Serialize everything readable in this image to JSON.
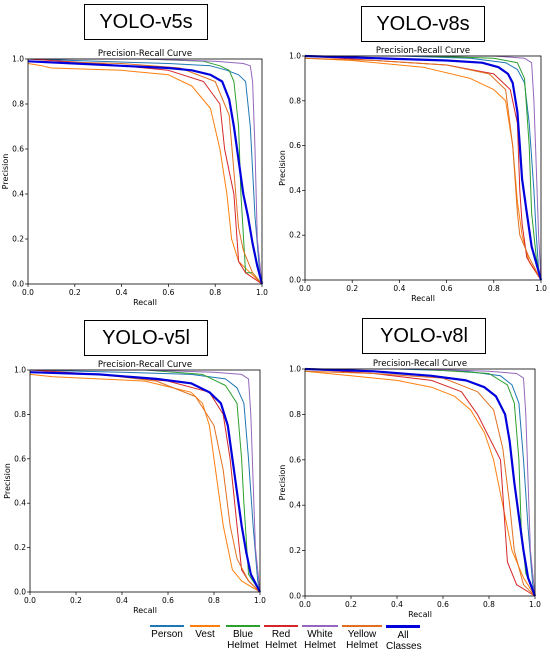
{
  "legend": [
    {
      "label": "Person",
      "color": "#1f77b4"
    },
    {
      "label": "Vest",
      "color": "#ff7f0e"
    },
    {
      "label": "Blue Helmet",
      "color": "#2ca02c"
    },
    {
      "label": "Red Helmet",
      "color": "#d62728"
    },
    {
      "label": "White Helmet",
      "color": "#9467bd"
    },
    {
      "label": "Yellow Helmet",
      "color": "#e07020"
    },
    {
      "label": "All Classes",
      "color": "#0000dd"
    }
  ],
  "chart_data": [
    {
      "model": "YOLO-v5s",
      "type": "line",
      "title": "Precision-Recall Curve",
      "xlabel": "Recall",
      "ylabel": "Precision",
      "xlim": [
        0,
        1
      ],
      "ylim": [
        0,
        1
      ],
      "xticks": [
        "0.0",
        "0.2",
        "0.4",
        "0.6",
        "0.8",
        "1.0"
      ],
      "yticks": [
        "0.0",
        "0.2",
        "0.4",
        "0.6",
        "0.8",
        "1.0"
      ],
      "series": [
        {
          "name": "Person",
          "color": "#1f77b4",
          "x": [
            0,
            0.3,
            0.6,
            0.78,
            0.85,
            0.9,
            0.93,
            0.95,
            0.97,
            0.99,
            1.0
          ],
          "y": [
            1,
            0.99,
            0.98,
            0.97,
            0.95,
            0.93,
            0.9,
            0.7,
            0.3,
            0.05,
            0
          ]
        },
        {
          "name": "Vest",
          "color": "#ff7f0e",
          "x": [
            0,
            0.06,
            0.1,
            0.4,
            0.6,
            0.7,
            0.78,
            0.82,
            0.85,
            0.87,
            0.9,
            0.95,
            1.0
          ],
          "y": [
            0.98,
            0.97,
            0.96,
            0.95,
            0.93,
            0.88,
            0.78,
            0.6,
            0.4,
            0.2,
            0.1,
            0.05,
            0
          ]
        },
        {
          "name": "Blue Helmet",
          "color": "#2ca02c",
          "x": [
            0,
            0.5,
            0.75,
            0.82,
            0.86,
            0.88,
            0.9,
            0.91,
            0.93,
            0.96,
            1.0
          ],
          "y": [
            1,
            1,
            0.99,
            0.97,
            0.95,
            0.9,
            0.7,
            0.4,
            0.05,
            0.05,
            0
          ]
        },
        {
          "name": "Red Helmet",
          "color": "#d62728",
          "x": [
            0,
            0.3,
            0.6,
            0.75,
            0.82,
            0.84,
            0.86,
            0.88,
            0.9,
            0.93,
            1.0
          ],
          "y": [
            1,
            0.98,
            0.95,
            0.9,
            0.8,
            0.6,
            0.5,
            0.4,
            0.1,
            0.05,
            0
          ]
        },
        {
          "name": "White Helmet",
          "color": "#9467bd",
          "x": [
            0,
            0.5,
            0.8,
            0.92,
            0.95,
            0.96,
            0.97,
            0.98,
            1.0
          ],
          "y": [
            1,
            1,
            0.99,
            0.98,
            0.97,
            0.9,
            0.6,
            0.2,
            0
          ]
        },
        {
          "name": "Yellow Helmet",
          "color": "#e07020",
          "x": [
            0,
            0.4,
            0.65,
            0.8,
            0.86,
            0.88,
            0.9,
            0.92,
            0.96,
            1.0
          ],
          "y": [
            0.99,
            0.98,
            0.96,
            0.9,
            0.75,
            0.5,
            0.25,
            0.15,
            0.05,
            0
          ]
        },
        {
          "name": "All Classes",
          "color": "#0000dd",
          "x": [
            0,
            0.2,
            0.4,
            0.6,
            0.7,
            0.78,
            0.83,
            0.86,
            0.88,
            0.9,
            0.92,
            0.94,
            0.96,
            0.98,
            1.0
          ],
          "y": [
            0.99,
            0.98,
            0.97,
            0.96,
            0.95,
            0.93,
            0.9,
            0.82,
            0.7,
            0.55,
            0.4,
            0.3,
            0.18,
            0.08,
            0
          ]
        }
      ]
    },
    {
      "model": "YOLO-v8s",
      "type": "line",
      "title": "Precision-Recall Curve",
      "xlabel": "Recall",
      "ylabel": "Precision",
      "xlim": [
        0,
        1
      ],
      "ylim": [
        0,
        1
      ],
      "xticks": [
        "0.0",
        "0.2",
        "0.4",
        "0.6",
        "0.8",
        "1.0"
      ],
      "yticks": [
        "0.0",
        "0.2",
        "0.4",
        "0.6",
        "0.8",
        "1.0"
      ],
      "series": [
        {
          "name": "Person",
          "color": "#1f77b4",
          "x": [
            0,
            0.4,
            0.7,
            0.85,
            0.9,
            0.93,
            0.95,
            0.97,
            0.98,
            0.99,
            1.0
          ],
          "y": [
            1,
            1,
            0.99,
            0.97,
            0.94,
            0.88,
            0.7,
            0.4,
            0.2,
            0.05,
            0
          ]
        },
        {
          "name": "Vest",
          "color": "#ff7f0e",
          "x": [
            0,
            0.2,
            0.5,
            0.7,
            0.8,
            0.85,
            0.88,
            0.9,
            0.92,
            0.95,
            1.0
          ],
          "y": [
            0.99,
            0.98,
            0.95,
            0.9,
            0.85,
            0.8,
            0.6,
            0.35,
            0.2,
            0.08,
            0
          ]
        },
        {
          "name": "Blue Helmet",
          "color": "#2ca02c",
          "x": [
            0,
            0.5,
            0.8,
            0.9,
            0.93,
            0.95,
            0.96,
            0.98,
            1.0
          ],
          "y": [
            1,
            1,
            0.99,
            0.97,
            0.9,
            0.6,
            0.3,
            0.1,
            0
          ]
        },
        {
          "name": "Red Helmet",
          "color": "#d62728",
          "x": [
            0,
            0.3,
            0.6,
            0.8,
            0.87,
            0.9,
            0.91,
            0.92,
            0.94,
            1.0
          ],
          "y": [
            1,
            0.98,
            0.96,
            0.92,
            0.85,
            0.7,
            0.4,
            0.25,
            0.1,
            0
          ]
        },
        {
          "name": "White Helmet",
          "color": "#9467bd",
          "x": [
            0,
            0.5,
            0.8,
            0.93,
            0.96,
            0.97,
            0.98,
            0.99,
            1.0
          ],
          "y": [
            1,
            1,
            1,
            0.99,
            0.97,
            0.8,
            0.5,
            0.2,
            0
          ]
        },
        {
          "name": "Yellow Helmet",
          "color": "#e07020",
          "x": [
            0,
            0.3,
            0.6,
            0.78,
            0.85,
            0.88,
            0.9,
            0.91,
            0.95,
            1.0
          ],
          "y": [
            0.99,
            0.98,
            0.96,
            0.92,
            0.85,
            0.6,
            0.3,
            0.2,
            0.1,
            0
          ]
        },
        {
          "name": "All Classes",
          "color": "#0000dd",
          "x": [
            0,
            0.3,
            0.6,
            0.75,
            0.82,
            0.86,
            0.88,
            0.9,
            0.91,
            0.92,
            0.94,
            0.96,
            1.0
          ],
          "y": [
            1,
            0.99,
            0.98,
            0.97,
            0.95,
            0.92,
            0.88,
            0.75,
            0.6,
            0.45,
            0.3,
            0.15,
            0
          ]
        }
      ]
    },
    {
      "model": "YOLO-v5l",
      "type": "line",
      "title": "Precision-Recall Curve",
      "xlabel": "Recall",
      "ylabel": "Precision",
      "xlim": [
        0,
        1
      ],
      "ylim": [
        0,
        1
      ],
      "xticks": [
        "0.0",
        "0.2",
        "0.4",
        "0.6",
        "0.8",
        "1.0"
      ],
      "yticks": [
        "0.0",
        "0.2",
        "0.4",
        "0.6",
        "0.8",
        "1.0"
      ],
      "series": [
        {
          "name": "Person",
          "color": "#1f77b4",
          "x": [
            0,
            0.4,
            0.7,
            0.85,
            0.9,
            0.93,
            0.95,
            0.97,
            0.99,
            1.0
          ],
          "y": [
            1,
            0.99,
            0.98,
            0.96,
            0.92,
            0.85,
            0.6,
            0.3,
            0.05,
            0
          ]
        },
        {
          "name": "Vest",
          "color": "#ff7f0e",
          "x": [
            0,
            0.1,
            0.5,
            0.7,
            0.75,
            0.78,
            0.8,
            0.82,
            0.84,
            0.86,
            0.88,
            0.92,
            1.0
          ],
          "y": [
            0.98,
            0.97,
            0.95,
            0.9,
            0.85,
            0.75,
            0.6,
            0.45,
            0.3,
            0.2,
            0.1,
            0.05,
            0
          ]
        },
        {
          "name": "Blue Helmet",
          "color": "#2ca02c",
          "x": [
            0,
            0.5,
            0.75,
            0.85,
            0.9,
            0.92,
            0.93,
            0.95,
            1.0
          ],
          "y": [
            1,
            1,
            0.98,
            0.93,
            0.85,
            0.6,
            0.4,
            0.08,
            0
          ]
        },
        {
          "name": "Red Helmet",
          "color": "#d62728",
          "x": [
            0,
            0.3,
            0.6,
            0.78,
            0.84,
            0.87,
            0.9,
            0.92,
            0.95,
            1.0
          ],
          "y": [
            1,
            0.98,
            0.95,
            0.9,
            0.8,
            0.6,
            0.3,
            0.1,
            0.05,
            0
          ]
        },
        {
          "name": "White Helmet",
          "color": "#9467bd",
          "x": [
            0,
            0.5,
            0.8,
            0.92,
            0.95,
            0.96,
            0.97,
            0.98,
            1.0
          ],
          "y": [
            1,
            1,
            0.99,
            0.98,
            0.96,
            0.8,
            0.5,
            0.2,
            0
          ]
        },
        {
          "name": "Yellow Helmet",
          "color": "#e07020",
          "x": [
            0,
            0.3,
            0.55,
            0.72,
            0.8,
            0.84,
            0.87,
            0.9,
            0.95,
            1.0
          ],
          "y": [
            0.99,
            0.98,
            0.95,
            0.88,
            0.75,
            0.55,
            0.3,
            0.15,
            0.05,
            0
          ]
        },
        {
          "name": "All Classes",
          "color": "#0000dd",
          "x": [
            0,
            0.3,
            0.55,
            0.7,
            0.78,
            0.83,
            0.86,
            0.88,
            0.9,
            0.92,
            0.94,
            0.96,
            1.0
          ],
          "y": [
            0.99,
            0.98,
            0.96,
            0.94,
            0.9,
            0.85,
            0.75,
            0.6,
            0.45,
            0.3,
            0.18,
            0.08,
            0
          ]
        }
      ]
    },
    {
      "model": "YOLO-v8l",
      "type": "line",
      "title": "Precision-Recall Curve",
      "xlabel": "Recall",
      "ylabel": "Precision",
      "xlim": [
        0,
        1
      ],
      "ylim": [
        0,
        1
      ],
      "xticks": [
        "0.0",
        "0.2",
        "0.4",
        "0.6",
        "0.8",
        "1.0"
      ],
      "yticks": [
        "0.0",
        "0.2",
        "0.4",
        "0.6",
        "0.8",
        "1.0"
      ],
      "series": [
        {
          "name": "Person",
          "color": "#1f77b4",
          "x": [
            0,
            0.4,
            0.7,
            0.85,
            0.9,
            0.93,
            0.95,
            0.97,
            0.99,
            1.0
          ],
          "y": [
            1,
            1,
            0.99,
            0.97,
            0.93,
            0.85,
            0.6,
            0.3,
            0.05,
            0
          ]
        },
        {
          "name": "Vest",
          "color": "#ff7f0e",
          "x": [
            0,
            0.2,
            0.4,
            0.55,
            0.65,
            0.72,
            0.78,
            0.82,
            0.86,
            0.9,
            0.95,
            1.0
          ],
          "y": [
            0.99,
            0.97,
            0.95,
            0.92,
            0.88,
            0.82,
            0.72,
            0.6,
            0.4,
            0.2,
            0.08,
            0
          ]
        },
        {
          "name": "Blue Helmet",
          "color": "#2ca02c",
          "x": [
            0,
            0.5,
            0.8,
            0.88,
            0.91,
            0.93,
            0.94,
            0.96,
            1.0
          ],
          "y": [
            1,
            1,
            0.98,
            0.93,
            0.85,
            0.6,
            0.3,
            0.1,
            0
          ]
        },
        {
          "name": "Red Helmet",
          "color": "#d62728",
          "x": [
            0,
            0.3,
            0.55,
            0.68,
            0.75,
            0.8,
            0.85,
            0.87,
            0.88,
            0.92,
            1.0
          ],
          "y": [
            1,
            0.98,
            0.95,
            0.9,
            0.8,
            0.7,
            0.6,
            0.3,
            0.15,
            0.05,
            0
          ]
        },
        {
          "name": "White Helmet",
          "color": "#9467bd",
          "x": [
            0,
            0.5,
            0.8,
            0.92,
            0.95,
            0.96,
            0.97,
            0.98,
            1.0
          ],
          "y": [
            1,
            1,
            0.99,
            0.98,
            0.96,
            0.8,
            0.5,
            0.2,
            0
          ]
        },
        {
          "name": "Yellow Helmet",
          "color": "#e07020",
          "x": [
            0,
            0.3,
            0.6,
            0.75,
            0.82,
            0.86,
            0.89,
            0.91,
            0.95,
            1.0
          ],
          "y": [
            0.99,
            0.98,
            0.96,
            0.9,
            0.82,
            0.65,
            0.4,
            0.2,
            0.05,
            0
          ]
        },
        {
          "name": "All Classes",
          "color": "#0000dd",
          "x": [
            0,
            0.3,
            0.55,
            0.7,
            0.78,
            0.83,
            0.87,
            0.89,
            0.91,
            0.93,
            0.95,
            0.97,
            1.0
          ],
          "y": [
            1,
            0.99,
            0.97,
            0.95,
            0.92,
            0.88,
            0.8,
            0.68,
            0.5,
            0.35,
            0.2,
            0.08,
            0
          ]
        }
      ]
    }
  ]
}
